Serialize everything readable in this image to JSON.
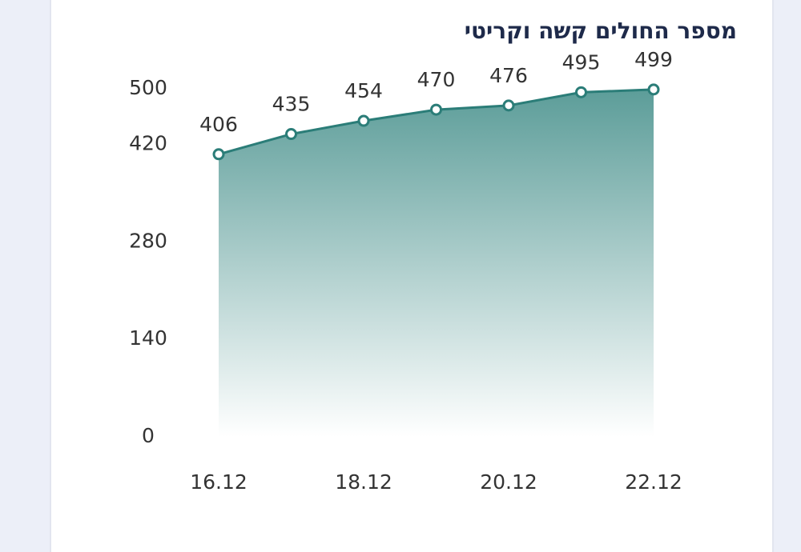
{
  "chart_data": {
    "type": "area",
    "title": "מספר החולים קשה וקריטי",
    "categories": [
      "16.12",
      null,
      "18.12",
      null,
      "20.12",
      null,
      "22.12"
    ],
    "values": [
      406,
      435,
      454,
      470,
      476,
      495,
      499
    ],
    "color": "#2b7d78",
    "ylim": [
      0,
      500
    ],
    "yticks": [
      0,
      140,
      280,
      420,
      500
    ]
  }
}
